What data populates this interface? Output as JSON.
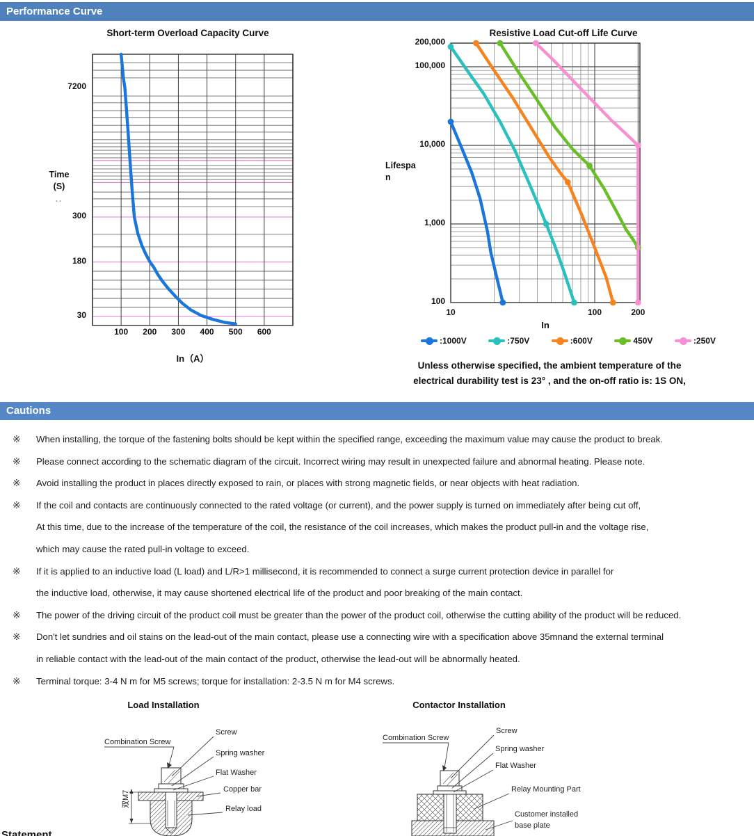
{
  "sections": {
    "performance_title": "Performance Curve",
    "cautions_title": "Cautions",
    "statement_label": "Statement"
  },
  "colors": {
    "section_bar": "#4f81bd",
    "cautions_bar": "#5587c6",
    "pink_gridline": "#e07ad8",
    "grid_gray": "#6e6e6e",
    "grid_dark": "#3c3c3c"
  },
  "chart_data": [
    {
      "type": "line",
      "title": "Short-term Overload Capacity Curve",
      "xlabel": "In（A）",
      "ylabel_line1": "Time",
      "ylabel_line2": "(S)",
      "ylabel_note": "..",
      "xlim": [
        0,
        700
      ],
      "ylim": [
        24,
        16000
      ],
      "y_scale": "log-approx",
      "x_ticks": [
        {
          "v": 100,
          "label": "100"
        },
        {
          "v": 200,
          "label": "200"
        },
        {
          "v": 300,
          "label": "300"
        },
        {
          "v": 400,
          "label": "400"
        },
        {
          "v": 500,
          "label": "500"
        },
        {
          "v": 600,
          "label": "600"
        }
      ],
      "y_ticks": [
        {
          "v": 7200,
          "label": "7200"
        },
        {
          "v": 300,
          "label": "300"
        },
        {
          "v": 180,
          "label": "180"
        },
        {
          "v": 30,
          "label": "30"
        }
      ],
      "special_gridlines": {
        "color": "#e07ad8",
        "values": [
          1200,
          700,
          300,
          180,
          30
        ]
      },
      "series": [
        {
          "name": "overload-capacity",
          "color": "#1a76d8",
          "points": [
            [
              100,
              16000
            ],
            [
              104,
              12000
            ],
            [
              108,
              9000
            ],
            [
              113,
              7200
            ],
            [
              118,
              4500
            ],
            [
              124,
              2500
            ],
            [
              131,
              1200
            ],
            [
              138,
              600
            ],
            [
              146,
              300
            ],
            [
              158,
              250
            ],
            [
              172,
              218
            ],
            [
              186,
              197
            ],
            [
              201,
              180
            ],
            [
              214,
              152
            ],
            [
              228,
              120
            ],
            [
              245,
              95
            ],
            [
              265,
              75
            ],
            [
              290,
              58
            ],
            [
              315,
              46
            ],
            [
              345,
              37
            ],
            [
              380,
              31
            ],
            [
              420,
              28
            ],
            [
              460,
              26
            ],
            [
              500,
              25
            ]
          ]
        }
      ]
    },
    {
      "type": "line",
      "title": "Resistive Load Cut-off Life Curve",
      "xlabel": "In",
      "ylabel_line1": "Lifespa",
      "ylabel_line2": "n",
      "x_scale": "log",
      "y_scale": "log",
      "xlim": [
        10,
        206
      ],
      "ylim": [
        100,
        200000
      ],
      "x_ticks": [
        {
          "v": 10,
          "label": "10"
        },
        {
          "v": 100,
          "label": "100"
        },
        {
          "v": 200,
          "label": "200"
        }
      ],
      "y_ticks": [
        {
          "v": 200000,
          "label": "200,000"
        },
        {
          "v": 100000,
          "label": "100,000"
        },
        {
          "v": 10000,
          "label": "10,000"
        },
        {
          "v": 1000,
          "label": "1,000"
        },
        {
          "v": 100,
          "label": "100"
        }
      ],
      "series": [
        {
          "name": "1000V",
          "label": ":1000V",
          "color": "#1a76d8",
          "points": [
            [
              10,
              20000
            ],
            [
              12,
              9000
            ],
            [
              14,
              4500
            ],
            [
              16,
              2100
            ],
            [
              18,
              800
            ],
            [
              19,
              430
            ],
            [
              21,
              200
            ],
            [
              23,
              100
            ]
          ],
          "dots": [
            [
              10,
              20000
            ],
            [
              23,
              100
            ]
          ]
        },
        {
          "name": "750V",
          "label": ":750V",
          "color": "#29c0bd",
          "points": [
            [
              10,
              180000
            ],
            [
              13,
              90000
            ],
            [
              17,
              45000
            ],
            [
              22,
              20000
            ],
            [
              28,
              8500
            ],
            [
              35,
              3300
            ],
            [
              42,
              1500
            ],
            [
              46,
              1000
            ],
            [
              53,
              520
            ],
            [
              62,
              230
            ],
            [
              72,
              100
            ]
          ],
          "dots": [
            [
              10,
              180000
            ],
            [
              46,
              1000
            ],
            [
              72,
              100
            ]
          ]
        },
        {
          "name": "600V",
          "label": ":600V",
          "color": "#f5831f",
          "points": [
            [
              15,
              200000
            ],
            [
              20,
              90000
            ],
            [
              27,
              40000
            ],
            [
              36,
              17000
            ],
            [
              48,
              7200
            ],
            [
              58,
              4400
            ],
            [
              65,
              3400
            ],
            [
              80,
              1400
            ],
            [
              100,
              500
            ],
            [
              120,
              210
            ],
            [
              134,
              100
            ]
          ],
          "dots": [
            [
              15,
              200000
            ],
            [
              65,
              3400
            ],
            [
              134,
              100
            ]
          ]
        },
        {
          "name": "450V",
          "label": "450V",
          "color": "#69be28",
          "points": [
            [
              22,
              200000
            ],
            [
              29,
              90000
            ],
            [
              39,
              40000
            ],
            [
              53,
              17000
            ],
            [
              70,
              9000
            ],
            [
              92,
              5500
            ],
            [
              115,
              2900
            ],
            [
              140,
              1500
            ],
            [
              165,
              850
            ],
            [
              185,
              630
            ],
            [
              200,
              500
            ]
          ],
          "dots": [
            [
              22,
              200000
            ],
            [
              92,
              5500
            ],
            [
              200,
              500
            ]
          ]
        },
        {
          "name": "250V",
          "label": ":250V",
          "color": "#f78fd2",
          "points": [
            [
              39,
              200000
            ],
            [
              52,
              120000
            ],
            [
              70,
              68000
            ],
            [
              95,
              38000
            ],
            [
              130,
              21000
            ],
            [
              165,
              14000
            ],
            [
              200,
              10000
            ],
            [
              200,
              100
            ]
          ],
          "dots": [
            [
              39,
              200000
            ],
            [
              200,
              10000
            ],
            [
              200,
              100
            ]
          ]
        }
      ],
      "note_line1": "Unless otherwise specified, the ambient temperature of the",
      "note_line2": "electrical durability test is 23° , and the on-off ratio is: 1S ON,"
    }
  ],
  "cautions": {
    "marker": "※",
    "items": [
      {
        "lines": [
          "When installing, the torque of the fastening bolts should be kept within the specified range, exceeding the maximum value may cause the product to break."
        ]
      },
      {
        "lines": [
          "Please connect according to the schematic diagram of the circuit. Incorrect wiring may result in unexpected failure and abnormal heating. Please note."
        ]
      },
      {
        "lines": [
          "Avoid installing the product in places directly exposed to rain, or places with strong magnetic fields, or near objects with heat radiation."
        ]
      },
      {
        "lines": [
          "If the coil and contacts are continuously connected to the rated voltage (or current), and the power supply is turned on immediately after being cut off,",
          "At this time, due to the increase of the temperature of the coil, the resistance of the coil increases, which makes the product pull-in and the voltage rise,",
          "which may cause the rated pull-in voltage to exceed."
        ]
      },
      {
        "lines": [
          "If it is applied to an inductive load (L load) and L/R>1 millisecond, it is recommended to connect a surge current protection device in parallel for",
          "the inductive load, otherwise, it may cause shortened electrical life of the product and poor breaking of the main contact."
        ]
      },
      {
        "lines": [
          "The power of the driving circuit of the product coil must be greater than the power of the product coil, otherwise the cutting ability of the product will be reduced."
        ]
      },
      {
        "lines": [
          "Don't let sundries and oil stains on the lead-out of the main contact, please use a connecting wire with a specification above 35mnand the external terminal",
          "in reliable contact with the lead-out of the main contact of the product, otherwise the lead-out will be abnormally heated."
        ]
      },
      {
        "lines": [
          "Terminal torque: 3-4 N m for M5 screws; torque for installation: 2-3.5 N m for M4 screws."
        ]
      }
    ]
  },
  "installation": {
    "load": {
      "title": "Load Installation",
      "labels": {
        "combination_screw": "Combination Screw",
        "screw": "Screw",
        "spring_washer": "Spring washer",
        "flat_washer": "Flat Washer",
        "copper_bar": "Copper bar",
        "relay_load": "Relay load",
        "dimension": "双M7"
      }
    },
    "contactor": {
      "title": "Contactor Installation",
      "labels": {
        "combination_screw": "Combination Screw",
        "screw": "Screw",
        "spring_washer": "Spring washer",
        "flat_washer": "Flat Washer",
        "relay_mounting_part": "Relay Mounting Part",
        "base_plate_line1": "Customer installed",
        "base_plate_line2": "base plate"
      }
    }
  }
}
